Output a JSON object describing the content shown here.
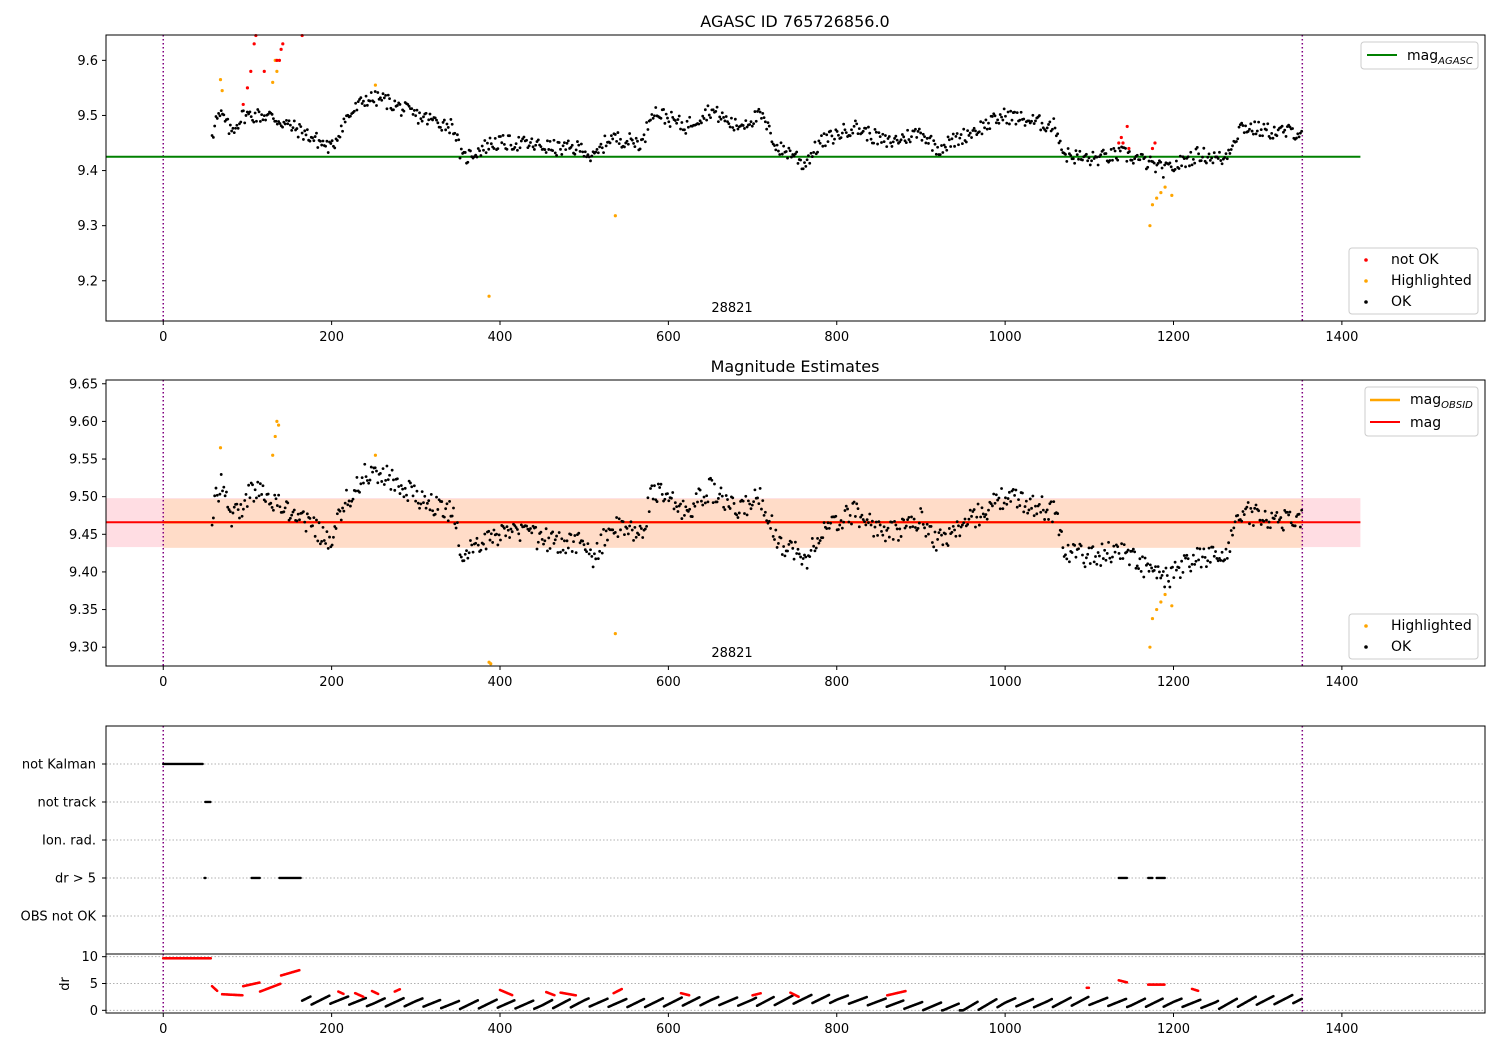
{
  "colors": {
    "ok": "#000000",
    "highlighted": "#ffa500",
    "not_ok": "#ff0000",
    "mag_agasc": "#008000",
    "mag_obsid": "#ffa500",
    "mag": "#ff0000",
    "band_obsid": "#ffdcc8",
    "band_mag": "#ffdde3",
    "obs_bounds": "#800080"
  },
  "chart_data": [
    {
      "type": "scatter",
      "title": "AGASC ID 765726856.0",
      "xlabel": "",
      "ylabel": "",
      "xlim": [
        -68,
        1570
      ],
      "ylim": [
        9.127,
        9.646
      ],
      "xticks": [
        "0",
        "200",
        "400",
        "600",
        "800",
        "1000",
        "1200",
        "1400"
      ],
      "yticks": [
        "9.2",
        "9.3",
        "9.4",
        "9.5",
        "9.6"
      ],
      "obs_bounds": [
        0,
        1353
      ],
      "obsid_label": "28821",
      "legend_top": {
        "label": "mag",
        "subscript": "AGASC"
      },
      "legend_bottom": [
        "not OK",
        "Highlighted",
        "OK"
      ],
      "mag_agasc": 9.425,
      "mag_agasc_x": [
        -68,
        1422
      ],
      "series": [
        {
          "name": "not OK",
          "points": [
            [
              95,
              9.52
            ],
            [
              100,
              9.55
            ],
            [
              104,
              9.58
            ],
            [
              108,
              9.63
            ],
            [
              110,
              9.645
            ],
            [
              120,
              9.58
            ],
            [
              135,
              9.6
            ],
            [
              138,
              9.6
            ],
            [
              140,
              9.62
            ],
            [
              142,
              9.63
            ],
            [
              165,
              9.645
            ],
            [
              1135,
              9.45
            ],
            [
              1138,
              9.46
            ],
            [
              1140,
              9.45
            ],
            [
              1145,
              9.48
            ],
            [
              1147,
              9.44
            ],
            [
              1175,
              9.44
            ],
            [
              1178,
              9.45
            ]
          ]
        },
        {
          "name": "Highlighted",
          "points": [
            [
              68,
              9.565
            ],
            [
              70,
              9.545
            ],
            [
              130,
              9.56
            ],
            [
              133,
              9.6
            ],
            [
              135,
              9.58
            ],
            [
              252,
              9.555
            ],
            [
              387,
              9.172
            ],
            [
              537,
              9.318
            ],
            [
              1172,
              9.3
            ],
            [
              1175,
              9.338
            ],
            [
              1180,
              9.35
            ],
            [
              1185,
              9.36
            ],
            [
              1190,
              9.37
            ],
            [
              1198,
              9.355
            ]
          ]
        },
        {
          "name": "OK",
          "anchors": [
            [
              60,
              9.49
            ],
            [
              70,
              9.5
            ],
            [
              80,
              9.47
            ],
            [
              95,
              9.5
            ],
            [
              105,
              9.5
            ],
            [
              125,
              9.5
            ],
            [
              165,
              9.47
            ],
            [
              200,
              9.44
            ],
            [
              215,
              9.49
            ],
            [
              240,
              9.53
            ],
            [
              260,
              9.53
            ],
            [
              300,
              9.5
            ],
            [
              345,
              9.48
            ],
            [
              355,
              9.42
            ],
            [
              390,
              9.45
            ],
            [
              420,
              9.45
            ],
            [
              470,
              9.44
            ],
            [
              500,
              9.44
            ],
            [
              510,
              9.42
            ],
            [
              530,
              9.46
            ],
            [
              570,
              9.45
            ],
            [
              580,
              9.51
            ],
            [
              620,
              9.48
            ],
            [
              650,
              9.51
            ],
            [
              680,
              9.48
            ],
            [
              710,
              9.5
            ],
            [
              730,
              9.44
            ],
            [
              750,
              9.43
            ],
            [
              760,
              9.41
            ],
            [
              780,
              9.45
            ],
            [
              820,
              9.48
            ],
            [
              860,
              9.45
            ],
            [
              900,
              9.47
            ],
            [
              920,
              9.44
            ],
            [
              960,
              9.47
            ],
            [
              1000,
              9.5
            ],
            [
              1060,
              9.48
            ],
            [
              1070,
              9.43
            ],
            [
              1100,
              9.42
            ],
            [
              1140,
              9.43
            ],
            [
              1160,
              9.42
            ],
            [
              1190,
              9.4
            ],
            [
              1230,
              9.43
            ],
            [
              1260,
              9.42
            ],
            [
              1280,
              9.48
            ],
            [
              1320,
              9.47
            ],
            [
              1353,
              9.47
            ]
          ]
        }
      ]
    },
    {
      "type": "scatter",
      "title": "Magnitude Estimates",
      "xlabel": "",
      "ylabel": "",
      "xlim": [
        -68,
        1570
      ],
      "ylim": [
        9.275,
        9.655
      ],
      "xticks": [
        "0",
        "200",
        "400",
        "600",
        "800",
        "1000",
        "1200",
        "1400"
      ],
      "yticks": [
        "9.30",
        "9.35",
        "9.40",
        "9.45",
        "9.50",
        "9.55",
        "9.60",
        "9.65"
      ],
      "obs_bounds": [
        0,
        1353
      ],
      "obsid_label": "28821",
      "legend_top": [
        {
          "label": "mag",
          "subscript": "OBSID"
        },
        {
          "label": "mag",
          "subscript": ""
        }
      ],
      "legend_bottom": [
        "Highlighted",
        "OK"
      ],
      "mag": 9.466,
      "mag_band": [
        9.433,
        9.498
      ],
      "mag_x": [
        -68,
        1422
      ],
      "mag_obsid": 9.466,
      "mag_obsid_band": [
        9.432,
        9.497
      ],
      "series": [
        {
          "name": "Highlighted",
          "points": [
            [
              68,
              9.565
            ],
            [
              130,
              9.555
            ],
            [
              133,
              9.58
            ],
            [
              135,
              9.6
            ],
            [
              137,
              9.595
            ],
            [
              252,
              9.555
            ],
            [
              387,
              9.28
            ],
            [
              389,
              9.278
            ],
            [
              537,
              9.318
            ],
            [
              1172,
              9.3
            ],
            [
              1175,
              9.338
            ],
            [
              1180,
              9.35
            ],
            [
              1185,
              9.36
            ],
            [
              1190,
              9.37
            ],
            [
              1198,
              9.355
            ]
          ]
        },
        {
          "name": "OK",
          "anchors": [
            [
              60,
              9.49
            ],
            [
              70,
              9.52
            ],
            [
              80,
              9.47
            ],
            [
              95,
              9.49
            ],
            [
              105,
              9.51
            ],
            [
              125,
              9.5
            ],
            [
              165,
              9.47
            ],
            [
              200,
              9.44
            ],
            [
              215,
              9.49
            ],
            [
              240,
              9.53
            ],
            [
              260,
              9.53
            ],
            [
              300,
              9.5
            ],
            [
              345,
              9.48
            ],
            [
              355,
              9.42
            ],
            [
              390,
              9.45
            ],
            [
              420,
              9.45
            ],
            [
              470,
              9.44
            ],
            [
              500,
              9.44
            ],
            [
              510,
              9.41
            ],
            [
              530,
              9.46
            ],
            [
              570,
              9.45
            ],
            [
              580,
              9.51
            ],
            [
              620,
              9.48
            ],
            [
              650,
              9.51
            ],
            [
              680,
              9.48
            ],
            [
              710,
              9.5
            ],
            [
              730,
              9.44
            ],
            [
              750,
              9.43
            ],
            [
              760,
              9.41
            ],
            [
              780,
              9.45
            ],
            [
              820,
              9.48
            ],
            [
              860,
              9.45
            ],
            [
              900,
              9.47
            ],
            [
              920,
              9.44
            ],
            [
              960,
              9.47
            ],
            [
              1000,
              9.5
            ],
            [
              1060,
              9.48
            ],
            [
              1070,
              9.43
            ],
            [
              1100,
              9.42
            ],
            [
              1140,
              9.43
            ],
            [
              1160,
              9.41
            ],
            [
              1190,
              9.39
            ],
            [
              1230,
              9.42
            ],
            [
              1260,
              9.42
            ],
            [
              1280,
              9.48
            ],
            [
              1320,
              9.47
            ],
            [
              1353,
              9.47
            ]
          ]
        }
      ]
    },
    {
      "type": "scatter",
      "title": "",
      "xlabel": "",
      "ylabel": "",
      "xlim": [
        -68,
        1570
      ],
      "categories": [
        "not Kalman",
        "not track",
        "Ion. rad.",
        "dr > 5",
        "OBS not OK"
      ],
      "obs_bounds": [
        0,
        1353
      ],
      "flags": [
        {
          "category": "not Kalman",
          "ranges": [
            [
              0,
              48
            ]
          ]
        },
        {
          "category": "not track",
          "ranges": [
            [
              50,
              57
            ]
          ]
        },
        {
          "category": "Ion. rad.",
          "ranges": []
        },
        {
          "category": "dr > 5",
          "ranges": [
            [
              49,
              51
            ],
            [
              105,
              115
            ],
            [
              138,
              164
            ],
            [
              1135,
              1145
            ],
            [
              1170,
              1175
            ],
            [
              1180,
              1190
            ]
          ]
        },
        {
          "category": "OBS not OK",
          "ranges": []
        }
      ]
    },
    {
      "type": "scatter",
      "title": "",
      "xlabel": "",
      "ylabel": "dr",
      "xlim": [
        -68,
        1570
      ],
      "ylim": [
        -0.5,
        10.5
      ],
      "xticks": [
        "0",
        "200",
        "400",
        "600",
        "800",
        "1000",
        "1200",
        "1400"
      ],
      "yticks": [
        "0",
        "5",
        "10"
      ],
      "obs_bounds": [
        0,
        1353
      ],
      "series": [
        {
          "name": "not OK",
          "segments": [
            [
              0,
              57,
              9.7,
              9.7
            ],
            [
              58,
              65,
              4.5,
              3.5
            ],
            [
              70,
              95,
              3.0,
              2.8
            ],
            [
              95,
              115,
              4.5,
              5.2
            ],
            [
              115,
              140,
              3.5,
              5.0
            ],
            [
              140,
              162,
              6.5,
              7.5
            ],
            [
              208,
              215,
              3.5,
              3.0
            ],
            [
              228,
              238,
              3.2,
              2.5
            ],
            [
              248,
              256,
              3.6,
              3.0
            ],
            [
              275,
              282,
              3.5,
              4.0
            ],
            [
              400,
              415,
              3.8,
              2.8
            ],
            [
              455,
              465,
              3.4,
              2.8
            ],
            [
              472,
              490,
              3.3,
              2.8
            ],
            [
              535,
              545,
              3.2,
              4.0
            ],
            [
              615,
              625,
              3.2,
              2.8
            ],
            [
              700,
              710,
              2.8,
              3.2
            ],
            [
              745,
              755,
              3.3,
              2.5
            ],
            [
              860,
              882,
              2.8,
              3.6
            ],
            [
              1097,
              1100,
              4.2,
              4.2
            ],
            [
              1135,
              1145,
              5.6,
              5.2
            ],
            [
              1170,
              1190,
              4.8,
              4.8
            ],
            [
              1222,
              1230,
              4.0,
              3.6
            ]
          ]
        },
        {
          "name": "OK",
          "anchors": [
            [
              165,
              1.8
            ],
            [
              200,
              2.0
            ],
            [
              250,
              1.5
            ],
            [
              300,
              1.5
            ],
            [
              350,
              1.0
            ],
            [
              400,
              1.2
            ],
            [
              450,
              1.0
            ],
            [
              500,
              1.5
            ],
            [
              550,
              1.3
            ],
            [
              600,
              1.5
            ],
            [
              650,
              1.8
            ],
            [
              700,
              1.5
            ],
            [
              750,
              2.0
            ],
            [
              800,
              2.2
            ],
            [
              850,
              1.5
            ],
            [
              900,
              0.8
            ],
            [
              950,
              0.5
            ],
            [
              1000,
              1.5
            ],
            [
              1050,
              1.3
            ],
            [
              1100,
              1.8
            ],
            [
              1150,
              1.3
            ],
            [
              1200,
              1.5
            ],
            [
              1250,
              1.0
            ],
            [
              1300,
              1.8
            ],
            [
              1353,
              2.2
            ]
          ]
        }
      ]
    }
  ]
}
